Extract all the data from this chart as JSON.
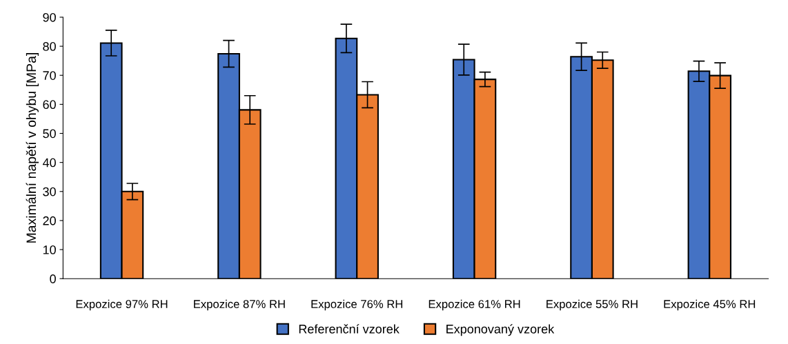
{
  "chart_data": {
    "type": "bar",
    "ylabel": "Maximální napětí v ohybu [MPa]",
    "categories": [
      "Expozice 97% RH",
      "Expozice 87% RH",
      "Expozice 76% RH",
      "Expozice 61% RH",
      "Expozice 55% RH",
      "Expozice 45% RH"
    ],
    "series": [
      {
        "name": "Referenční vzorek",
        "color": "#4472c4",
        "values": [
          81.1,
          77.4,
          82.7,
          75.4,
          76.4,
          71.4
        ],
        "errors": [
          4.4,
          4.6,
          4.9,
          5.3,
          4.7,
          3.5
        ]
      },
      {
        "name": "Exponovaný vzorek",
        "color": "#ed7d31",
        "values": [
          30.0,
          58.1,
          63.3,
          68.6,
          75.2,
          69.9
        ],
        "errors": [
          2.8,
          4.9,
          4.5,
          2.5,
          2.8,
          4.4
        ]
      }
    ],
    "ylim": [
      0,
      90
    ],
    "yticks": [
      0,
      10,
      20,
      30,
      40,
      50,
      60,
      70,
      80,
      90
    ],
    "grid": false,
    "legend": "bottom"
  }
}
